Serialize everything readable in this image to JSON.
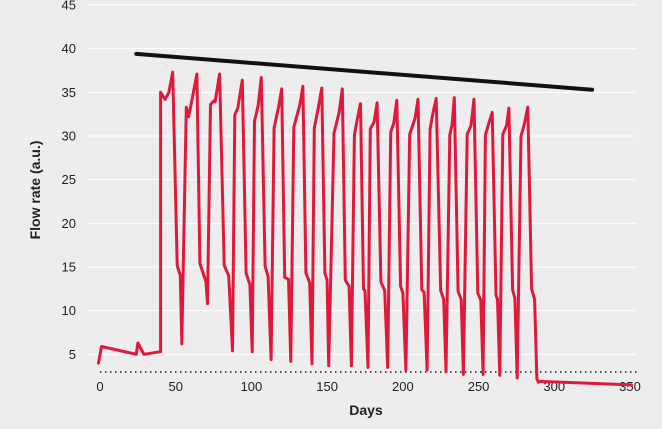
{
  "chart_data": {
    "type": "line",
    "title": "",
    "xlabel": "Days",
    "ylabel": "Flow rate (a.u.)",
    "xlim": [
      0,
      350
    ],
    "ylim": [
      0,
      45
    ],
    "x_ticks": [
      "0",
      "50",
      "100",
      "150",
      "200",
      "250",
      "300",
      "350"
    ],
    "y_ticks": [
      "5",
      "10",
      "15",
      "20",
      "25",
      "30",
      "35",
      "40",
      "45"
    ],
    "grid": true,
    "legend": "none",
    "colors": {
      "background": "#ededed",
      "flow": "#e0183c",
      "trend": "#111111"
    },
    "series": [
      {
        "color": "#e0183c",
        "points": [
          [
            -1,
            4
          ],
          [
            1,
            5.9
          ],
          [
            24,
            5
          ],
          [
            25,
            6.3
          ],
          [
            29,
            5
          ],
          [
            40,
            5.3
          ],
          [
            40,
            35
          ],
          [
            43,
            34.2
          ],
          [
            45.5,
            35
          ],
          [
            48,
            37.3
          ],
          [
            51,
            15.2
          ],
          [
            53,
            14
          ],
          [
            54,
            6.2
          ],
          [
            57,
            33.3
          ],
          [
            58.5,
            32.2
          ],
          [
            60,
            33.5
          ],
          [
            64,
            37.1
          ],
          [
            66,
            15.4
          ],
          [
            70,
            13.3
          ],
          [
            71,
            10.8
          ],
          [
            73,
            33.6
          ],
          [
            75,
            34
          ],
          [
            76,
            33.9
          ],
          [
            79,
            37.1
          ],
          [
            82,
            15.2
          ],
          [
            85,
            14
          ],
          [
            87.5,
            5.4
          ],
          [
            89,
            32.4
          ],
          [
            91,
            33.2
          ],
          [
            94,
            36.4
          ],
          [
            96.5,
            14.3
          ],
          [
            99,
            13
          ],
          [
            100.5,
            5.3
          ],
          [
            102,
            31.7
          ],
          [
            104.5,
            33.5
          ],
          [
            106.5,
            36.7
          ],
          [
            109,
            15.1
          ],
          [
            111,
            13.9
          ],
          [
            113,
            4.4
          ],
          [
            115,
            30.9
          ],
          [
            118,
            33.4
          ],
          [
            120,
            35.4
          ],
          [
            122,
            13.8
          ],
          [
            124.5,
            13.6
          ],
          [
            126,
            4.2
          ],
          [
            128,
            31
          ],
          [
            132,
            33.6
          ],
          [
            134,
            35.7
          ],
          [
            136,
            14.3
          ],
          [
            138.5,
            13.2
          ],
          [
            140,
            3.9
          ],
          [
            141.5,
            30.9
          ],
          [
            144,
            33.1
          ],
          [
            146.5,
            35.5
          ],
          [
            148.5,
            14.3
          ],
          [
            150,
            13.5
          ],
          [
            151,
            3.7
          ],
          [
            154.5,
            30.3
          ],
          [
            158,
            32.8
          ],
          [
            160,
            35.4
          ],
          [
            162,
            13.5
          ],
          [
            164.5,
            12.8
          ],
          [
            166,
            3.7
          ],
          [
            168,
            30.1
          ],
          [
            170,
            32
          ],
          [
            172,
            33.7
          ],
          [
            174,
            12.5
          ],
          [
            175,
            12.3
          ],
          [
            177,
            3.5
          ],
          [
            178.5,
            30.8
          ],
          [
            181,
            31.6
          ],
          [
            183,
            33.8
          ],
          [
            185.5,
            13.3
          ],
          [
            188,
            12.3
          ],
          [
            190,
            3.5
          ],
          [
            192,
            30.4
          ],
          [
            194,
            31.5
          ],
          [
            196,
            34.1
          ],
          [
            198.5,
            12.8
          ],
          [
            200,
            12
          ],
          [
            202,
            3.2
          ],
          [
            204.5,
            30.2
          ],
          [
            208,
            32
          ],
          [
            210,
            34.2
          ],
          [
            212.5,
            12.4
          ],
          [
            214,
            12.1
          ],
          [
            216,
            3.2
          ],
          [
            218,
            30.8
          ],
          [
            220,
            32.7
          ],
          [
            222,
            34.3
          ],
          [
            225,
            12.3
          ],
          [
            227,
            11.3
          ],
          [
            228.5,
            3
          ],
          [
            231,
            30.1
          ],
          [
            232.5,
            31.3
          ],
          [
            234,
            34.4
          ],
          [
            236.5,
            12.2
          ],
          [
            238.5,
            11.3
          ],
          [
            240,
            2.7
          ],
          [
            242.5,
            30.2
          ],
          [
            245,
            31.2
          ],
          [
            247,
            34.2
          ],
          [
            249.5,
            12
          ],
          [
            251.5,
            11.2
          ],
          [
            253,
            2.7
          ],
          [
            254.5,
            30.1
          ],
          [
            257,
            31.6
          ],
          [
            259,
            32.7
          ],
          [
            261.5,
            11.8
          ],
          [
            262.5,
            11.3
          ],
          [
            264,
            2.6
          ],
          [
            266,
            30.2
          ],
          [
            268.5,
            31.2
          ],
          [
            270,
            33.2
          ],
          [
            272.5,
            12.4
          ],
          [
            274,
            11.4
          ],
          [
            275.5,
            2.3
          ],
          [
            278,
            30
          ],
          [
            280,
            31.2
          ],
          [
            282.5,
            33.3
          ],
          [
            285,
            12.5
          ],
          [
            287,
            11.3
          ],
          [
            288.5,
            2.2
          ],
          [
            289.5,
            1.8
          ],
          [
            290.5,
            1.9
          ],
          [
            351,
            1.5
          ]
        ]
      },
      {
        "color": "#111111",
        "points": [
          [
            24,
            39.4
          ],
          [
            325,
            35.3
          ]
        ]
      }
    ]
  }
}
